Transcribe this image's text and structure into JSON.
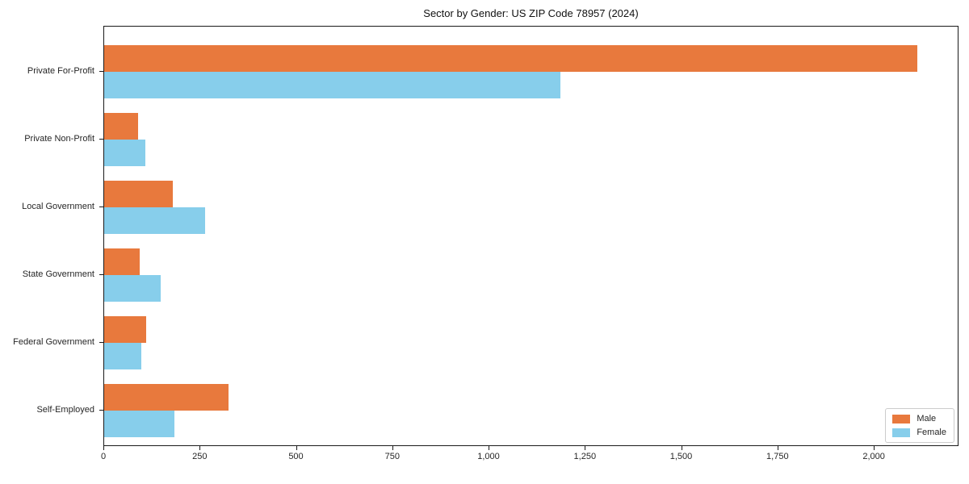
{
  "chart_data": {
    "type": "bar",
    "orientation": "horizontal",
    "title": "Sector by Gender: US ZIP Code 78957 (2024)",
    "categories": [
      "Private For-Profit",
      "Private Non-Profit",
      "Local Government",
      "State Government",
      "Federal Government",
      "Self-Employed"
    ],
    "series": [
      {
        "name": "Male",
        "color": "#E8793D",
        "values": [
          2110,
          88,
          178,
          92,
          109,
          322
        ]
      },
      {
        "name": "Female",
        "color": "#87CEEB",
        "values": [
          1185,
          107,
          261,
          146,
          96,
          182
        ]
      }
    ],
    "xlim": [
      0,
      2220
    ],
    "xticks": [
      0,
      250,
      500,
      750,
      1000,
      1250,
      1500,
      1750,
      2000
    ],
    "xtick_labels": [
      "0",
      "250",
      "500",
      "750",
      "1,000",
      "1,250",
      "1,500",
      "1,750",
      "2,000"
    ],
    "xlabel": "",
    "ylabel": "",
    "grid": false,
    "legend_position": "lower right"
  }
}
